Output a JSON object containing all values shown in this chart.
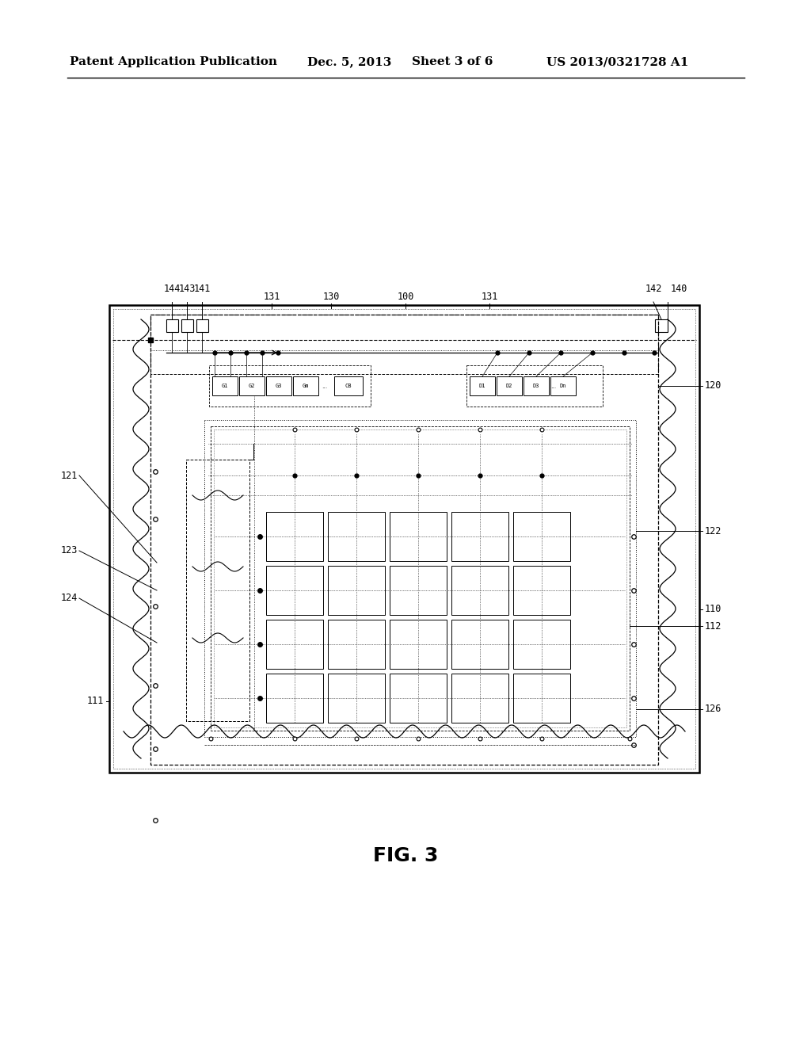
{
  "bg_color": "#ffffff",
  "header_text": "Patent Application Publication",
  "header_date": "Dec. 5, 2013",
  "header_sheet": "Sheet 3 of 6",
  "header_patent": "US 2013/0321728 A1",
  "fig_label": "FIG. 3",
  "line_color": "#000000"
}
